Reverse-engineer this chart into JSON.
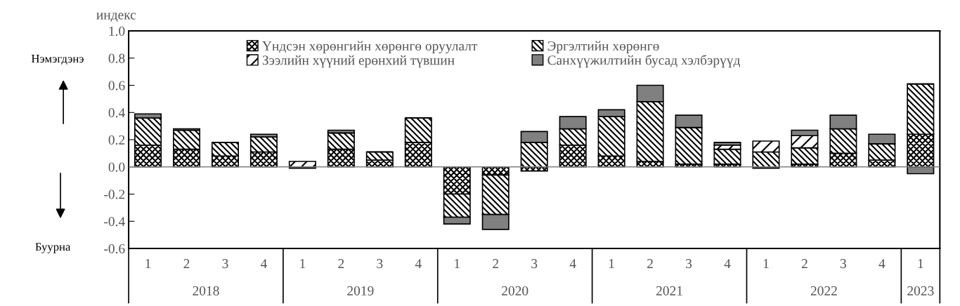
{
  "chart_data": {
    "type": "bar",
    "stacked": true,
    "ylabel": "индекс",
    "categories": [
      "1",
      "2",
      "3",
      "4",
      "1",
      "2",
      "3",
      "4",
      "1",
      "2",
      "3",
      "4",
      "1",
      "2",
      "3",
      "4",
      "1",
      "2",
      "3",
      "4",
      "1"
    ],
    "series": [
      {
        "name": "Үндсэн хөрөнгийн хөрөнгө оруулалт",
        "color": "#000000",
        "values": [
          0.16,
          0.13,
          0.08,
          0.11,
          null,
          0.13,
          0.05,
          0.18,
          -0.2,
          -0.06,
          -0.03,
          0.16,
          0.08,
          0.04,
          0.02,
          0.02,
          0.0,
          0.02,
          0.1,
          0.05,
          0.24
        ]
      },
      {
        "name": "Эргэлтийн хөрөнгө",
        "color": "#000000",
        "values": [
          0.2,
          0.14,
          0.1,
          0.11,
          0.0,
          0.12,
          0.06,
          0.18,
          -0.17,
          -0.29,
          0.18,
          0.12,
          0.29,
          0.44,
          0.27,
          0.11,
          0.11,
          0.12,
          0.18,
          0.12,
          0.37
        ]
      },
      {
        "name": "Зээлийн хүүний ерөнхий түвшин",
        "color": "#000000",
        "values": [
          0,
          0,
          0,
          0,
          0.04,
          0,
          0,
          0,
          0,
          0,
          0,
          0,
          0,
          0,
          0,
          0.03,
          0.08,
          0.09,
          0,
          0,
          0
        ]
      },
      {
        "name": "Санхүүжилтийн бусад хэлбэрүүд",
        "color": "#808080",
        "values": [
          0.03,
          0.01,
          0,
          0.02,
          -0.01,
          0.02,
          0,
          0,
          -0.05,
          -0.11,
          0.08,
          0.09,
          0.05,
          0.12,
          0.09,
          0.02,
          -0.01,
          0.04,
          0.1,
          0.07,
          -0.05
        ]
      }
    ],
    "ylim": [
      -0.6,
      1.0
    ],
    "yticks": [
      -0.6,
      -0.4,
      -0.2,
      {
        "value": 0,
        "label": "0.0"
      },
      0.2,
      0.4,
      0.6,
      0.8,
      {
        "value": 1,
        "label": "1.0"
      }
    ],
    "ref_lines": [
      {
        "axis": "y",
        "value": 0,
        "color": "#808080"
      }
    ],
    "legend": "top",
    "grid": false,
    "annotations": [
      "2018",
      "2019",
      "2020",
      "2021",
      "2022",
      "2023",
      "Нэмэгдэнэ",
      "Буурна"
    ]
  }
}
